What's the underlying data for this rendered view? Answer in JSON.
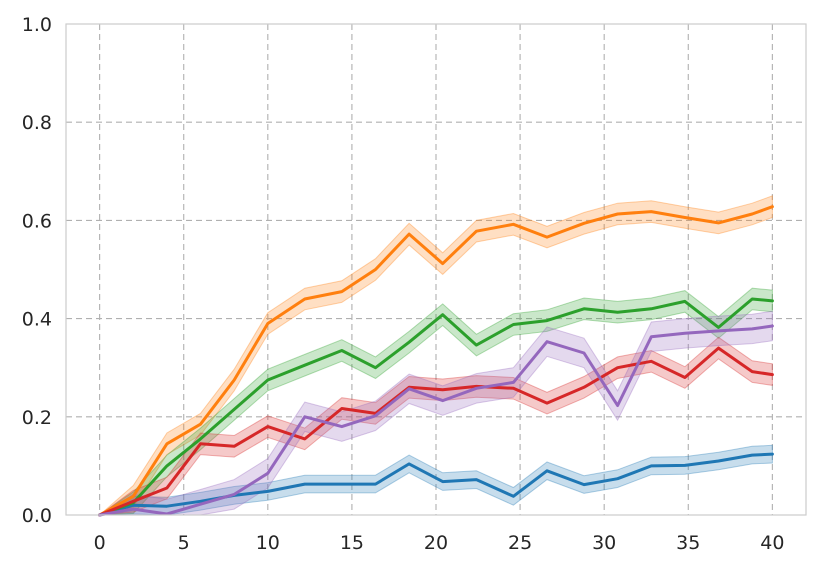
{
  "chart_data": {
    "type": "line",
    "title": "",
    "xlabel": "",
    "ylabel": "",
    "xlim": [
      -2,
      42
    ],
    "ylim": [
      0,
      1.0
    ],
    "grid": true,
    "legend": "none",
    "x_ticks": [
      0,
      5,
      10,
      15,
      20,
      25,
      30,
      35,
      40
    ],
    "y_ticks": [
      0.0,
      0.2,
      0.4,
      0.6,
      0.8,
      1.0
    ],
    "x_tick_labels": [
      "0",
      "5",
      "10",
      "15",
      "20",
      "25",
      "30",
      "35",
      "40"
    ],
    "y_tick_labels": [
      "0.0",
      "0.2",
      "0.4",
      "0.6",
      "0.8",
      "1.0"
    ],
    "x": [
      0,
      2,
      4,
      6,
      8,
      10,
      12.2,
      14.4,
      16.4,
      18.4,
      20.4,
      22.4,
      24.6,
      26.6,
      28.8,
      30.8,
      32.8,
      34.8,
      36.8,
      38.8,
      40
    ],
    "series": [
      {
        "color": "#1f77b4",
        "values": [
          0.0,
          0.02,
          0.018,
          0.028,
          0.04,
          0.048,
          0.063,
          0.063,
          0.063,
          0.104,
          0.068,
          0.072,
          0.038,
          0.09,
          0.062,
          0.074,
          0.1,
          0.101,
          0.11,
          0.122,
          0.124
        ],
        "band": 0.018
      },
      {
        "color": "#ff7f0e",
        "values": [
          0.0,
          0.038,
          0.145,
          0.185,
          0.275,
          0.39,
          0.44,
          0.455,
          0.5,
          0.572,
          0.512,
          0.578,
          0.592,
          0.566,
          0.594,
          0.613,
          0.618,
          0.606,
          0.595,
          0.613,
          0.628
        ],
        "band": 0.022
      },
      {
        "color": "#2ca02c",
        "values": [
          0.0,
          0.025,
          0.1,
          0.155,
          0.215,
          0.275,
          0.305,
          0.335,
          0.3,
          0.352,
          0.408,
          0.346,
          0.388,
          0.396,
          0.42,
          0.413,
          0.42,
          0.435,
          0.382,
          0.44,
          0.436
        ],
        "band": 0.022
      },
      {
        "color": "#d62728",
        "values": [
          0.0,
          0.028,
          0.055,
          0.145,
          0.14,
          0.18,
          0.155,
          0.217,
          0.207,
          0.26,
          0.255,
          0.262,
          0.258,
          0.228,
          0.26,
          0.3,
          0.313,
          0.28,
          0.34,
          0.292,
          0.286
        ],
        "band": 0.022
      },
      {
        "color": "#9467bd",
        "values": [
          0.0,
          0.012,
          0.002,
          0.022,
          0.042,
          0.085,
          0.2,
          0.18,
          0.202,
          0.257,
          0.233,
          0.258,
          0.27,
          0.353,
          0.33,
          0.223,
          0.363,
          0.37,
          0.375,
          0.379,
          0.385
        ],
        "band": 0.03
      }
    ]
  }
}
